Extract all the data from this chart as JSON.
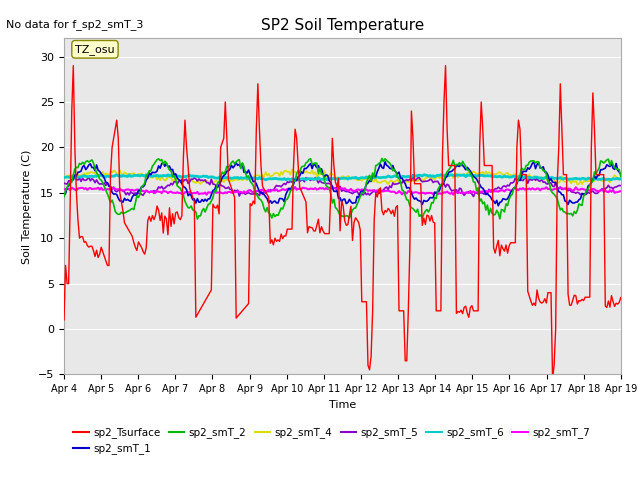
{
  "title": "SP2 Soil Temperature",
  "no_data_text": "No data for f_sp2_smT_3",
  "xlabel": "Time",
  "ylabel": "Soil Temperature (C)",
  "ylim": [
    -5,
    32
  ],
  "yticks": [
    -5,
    0,
    5,
    10,
    15,
    20,
    25,
    30
  ],
  "xtick_labels": [
    "Apr 4",
    "Apr 5",
    "Apr 6",
    "Apr 7",
    "Apr 8",
    "Apr 9",
    "Apr 10",
    "Apr 11",
    "Apr 12",
    "Apr 13",
    "Apr 14",
    "Apr 15",
    "Apr 16",
    "Apr 17",
    "Apr 18",
    "Apr 19"
  ],
  "tz_label": "TZ_osu",
  "bg_color": "#d8d8d8",
  "plot_bg_color": "#e0e0e0",
  "series": {
    "sp2_Tsurface": {
      "color": "#ff0000",
      "lw": 1.0
    },
    "sp2_smT_1": {
      "color": "#0000cc",
      "lw": 1.2
    },
    "sp2_smT_2": {
      "color": "#00bb00",
      "lw": 1.2
    },
    "sp2_smT_4": {
      "color": "#dddd00",
      "lw": 1.2
    },
    "sp2_smT_5": {
      "color": "#8800cc",
      "lw": 1.2
    },
    "sp2_smT_6": {
      "color": "#00cccc",
      "lw": 2.0
    },
    "sp2_smT_7": {
      "color": "#ff00ff",
      "lw": 1.5
    }
  }
}
